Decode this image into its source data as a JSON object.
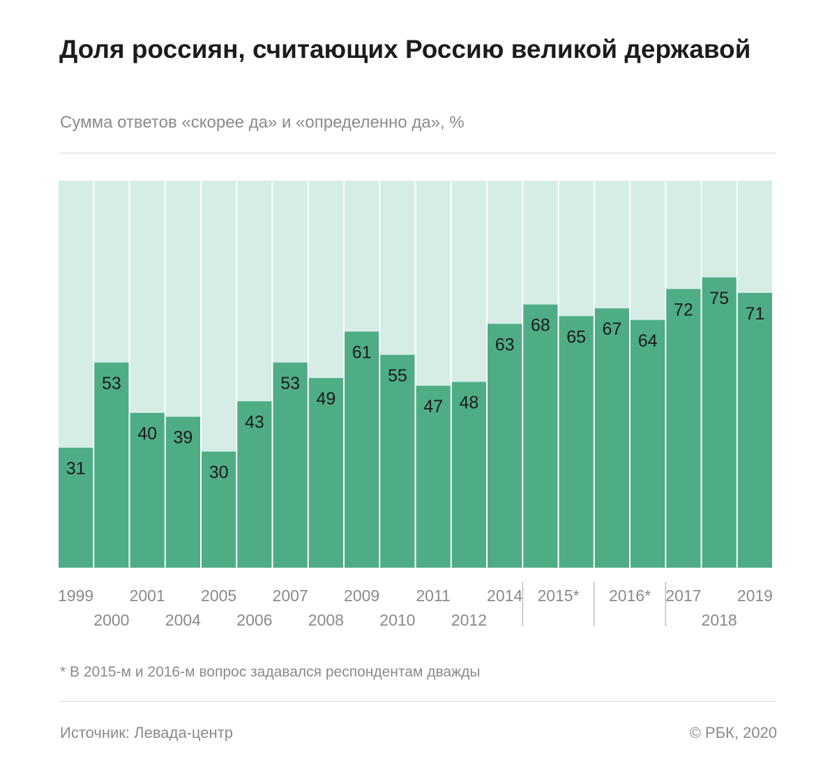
{
  "title": "Доля россиян, считающих Россию великой державой",
  "subtitle": "Сумма ответов «скорее да» и «определенно да», %",
  "footnote": "* В 2015-м и 2016-м вопрос задавался респондентам дважды",
  "source": "Источник: Левада-центр",
  "copyright": "© РБК, 2020",
  "colors": {
    "bar": "#4fad86",
    "background_bar": "#d5ede5",
    "separator": "#ffffff",
    "axis_text": "#8a8a8a",
    "value_text": "#1a1a1a",
    "group_divider": "#cccccc"
  },
  "chart_data": {
    "type": "bar",
    "title": "Доля россиян, считающих Россию великой державой",
    "ylabel": "%",
    "ylim": [
      0,
      100
    ],
    "categories": [
      "1999",
      "2000",
      "2001",
      "2004",
      "2005",
      "2006",
      "2007",
      "2008",
      "2009",
      "2010",
      "2011",
      "2012",
      "2014",
      "2015*",
      "2015*",
      "2016*",
      "2016*",
      "2017",
      "2018",
      "2019"
    ],
    "values": [
      31,
      53,
      40,
      39,
      30,
      43,
      53,
      49,
      61,
      55,
      47,
      48,
      63,
      68,
      65,
      67,
      64,
      72,
      75,
      71
    ],
    "x_tick_labels": [
      {
        "text": "1999",
        "row": 1
      },
      {
        "text": "2000",
        "row": 2
      },
      {
        "text": "2001",
        "row": 1
      },
      {
        "text": "2004",
        "row": 2
      },
      {
        "text": "2005",
        "row": 1
      },
      {
        "text": "2006",
        "row": 2
      },
      {
        "text": "2007",
        "row": 1
      },
      {
        "text": "2008",
        "row": 2
      },
      {
        "text": "2009",
        "row": 1
      },
      {
        "text": "2010",
        "row": 2
      },
      {
        "text": "2011",
        "row": 1
      },
      {
        "text": "2012",
        "row": 2
      },
      {
        "text": "2014",
        "row": 1
      },
      {
        "text": "2015*",
        "row": 1
      },
      {
        "text": "2016*",
        "row": 1
      },
      {
        "text": "2017",
        "row": 1
      },
      {
        "text": "2018",
        "row": 2
      },
      {
        "text": "2019",
        "row": 1
      }
    ]
  }
}
